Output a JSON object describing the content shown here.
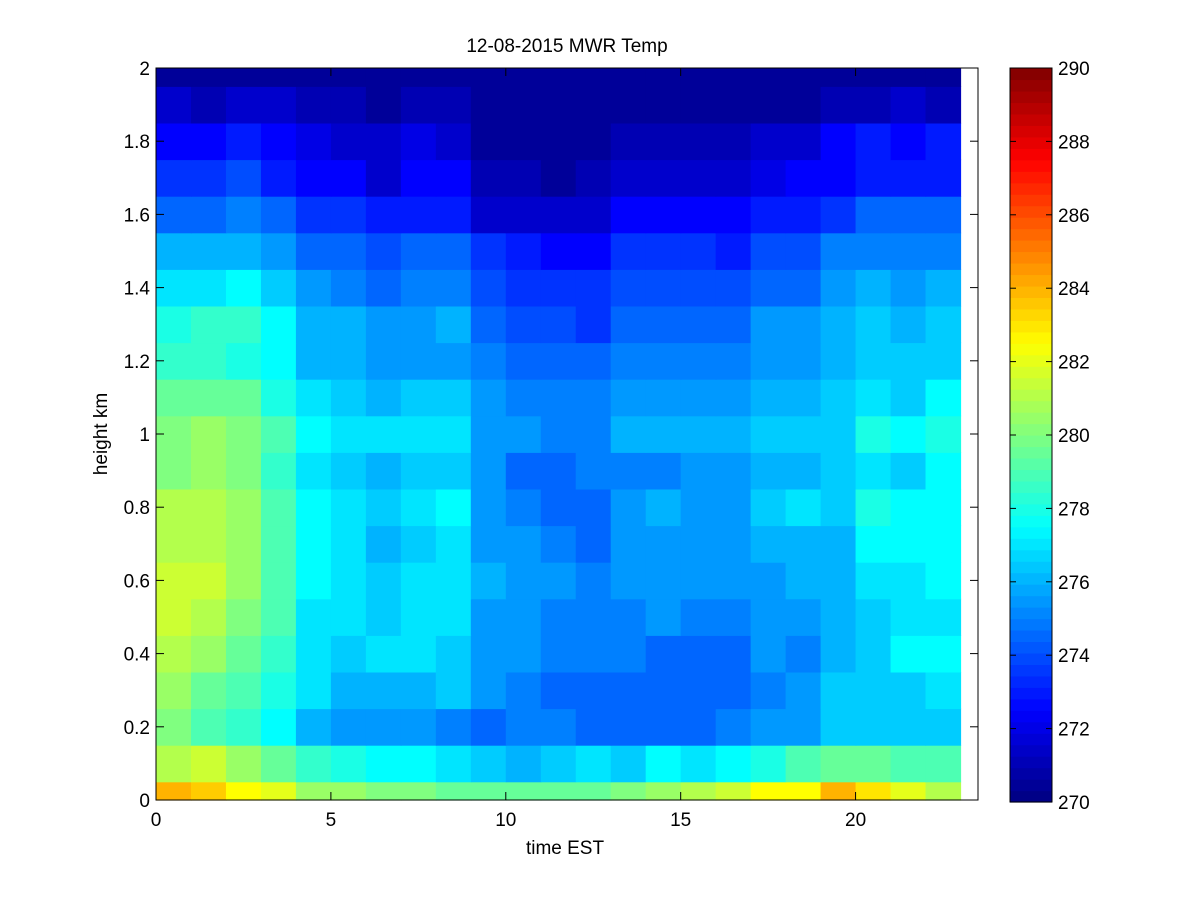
{
  "chart_data": {
    "type": "heatmap",
    "title": "12-08-2015 MWR Temp",
    "xlabel": "time EST",
    "ylabel": "height km",
    "xlim": [
      0,
      23.5
    ],
    "ylim": [
      0,
      2
    ],
    "x_ticks": [
      0,
      5,
      10,
      15,
      20
    ],
    "y_ticks": [
      0,
      0.2,
      0.4,
      0.6,
      0.8,
      1,
      1.2,
      1.4,
      1.6,
      1.8,
      2
    ],
    "y_tick_labels": [
      "0",
      "0.2",
      "0.4",
      "0.6",
      "0.8",
      "1",
      "1.2",
      "1.4",
      "1.6",
      "1.8",
      "2"
    ],
    "colormap": "jet",
    "colorbar": {
      "min": 270,
      "max": 290,
      "ticks": [
        270,
        272,
        274,
        276,
        278,
        280,
        282,
        284,
        286,
        288,
        290
      ]
    },
    "cell_width_hours": 1.0,
    "x_centers": [
      0.5,
      1.5,
      2.5,
      3.5,
      4.5,
      5.5,
      6.5,
      7.5,
      8.5,
      9.5,
      10.5,
      11.5,
      12.5,
      13.5,
      14.5,
      15.5,
      16.5,
      17.5,
      18.5,
      19.5,
      20.5,
      21.5,
      22.5
    ],
    "y_edges": [
      0,
      0.05,
      0.15,
      0.25,
      0.35,
      0.45,
      0.55,
      0.65,
      0.75,
      0.85,
      0.95,
      1.05,
      1.15,
      1.25,
      1.35,
      1.45,
      1.55,
      1.65,
      1.75,
      1.85,
      1.95,
      2.0
    ],
    "values": [
      [
        284.0,
        283.5,
        282.5,
        282.0,
        280.5,
        280.5,
        280.0,
        280.0,
        279.5,
        279.5,
        279.5,
        279.5,
        279.5,
        280.0,
        280.5,
        281.0,
        281.5,
        282.5,
        282.5,
        284.0,
        283.0,
        282.0,
        281.0
      ],
      [
        281.0,
        281.5,
        280.5,
        279.5,
        278.5,
        278.0,
        277.5,
        277.5,
        277.0,
        276.5,
        276.0,
        276.5,
        277.0,
        276.5,
        277.5,
        277.0,
        277.5,
        278.0,
        279.0,
        279.5,
        279.5,
        279.0,
        279.0
      ],
      [
        280.0,
        279.0,
        278.5,
        277.5,
        276.0,
        275.5,
        275.5,
        275.5,
        275.0,
        274.5,
        275.0,
        275.0,
        274.5,
        274.5,
        274.5,
        274.5,
        275.0,
        275.5,
        275.5,
        276.5,
        276.5,
        276.5,
        276.5
      ],
      [
        280.5,
        279.5,
        279.0,
        278.0,
        277.0,
        276.0,
        276.0,
        276.0,
        276.5,
        275.5,
        275.0,
        274.5,
        274.5,
        274.5,
        274.5,
        274.5,
        274.5,
        275.0,
        275.5,
        276.5,
        276.5,
        276.5,
        277.0
      ],
      [
        281.0,
        280.5,
        279.5,
        278.5,
        277.0,
        276.5,
        277.0,
        277.0,
        276.5,
        275.5,
        275.5,
        275.0,
        275.0,
        275.0,
        274.5,
        274.5,
        274.5,
        275.5,
        275.0,
        276.0,
        276.5,
        277.5,
        277.5
      ],
      [
        281.5,
        281.0,
        280.0,
        279.0,
        277.0,
        277.0,
        276.5,
        277.0,
        277.0,
        275.5,
        275.5,
        275.0,
        275.0,
        275.0,
        275.5,
        275.0,
        275.0,
        275.5,
        275.5,
        276.0,
        276.5,
        277.0,
        277.0
      ],
      [
        281.5,
        281.5,
        280.5,
        279.0,
        277.5,
        277.0,
        276.5,
        277.0,
        277.0,
        276.0,
        275.5,
        275.5,
        275.0,
        275.5,
        275.5,
        275.5,
        275.5,
        275.5,
        276.0,
        276.0,
        277.0,
        277.0,
        277.5
      ],
      [
        281.0,
        281.0,
        280.5,
        279.0,
        277.5,
        277.0,
        276.0,
        276.5,
        277.0,
        275.5,
        275.5,
        275.0,
        274.5,
        275.5,
        275.5,
        275.5,
        275.5,
        276.0,
        276.0,
        276.0,
        277.5,
        277.5,
        277.5
      ],
      [
        281.0,
        281.0,
        280.5,
        279.0,
        277.5,
        277.0,
        276.5,
        277.0,
        277.5,
        275.5,
        275.0,
        274.5,
        274.5,
        275.5,
        276.0,
        275.5,
        275.5,
        276.5,
        277.0,
        276.5,
        278.0,
        277.5,
        277.5
      ],
      [
        280.0,
        280.5,
        280.0,
        278.5,
        277.0,
        276.5,
        276.0,
        276.5,
        276.5,
        275.5,
        274.5,
        274.5,
        275.0,
        275.0,
        275.0,
        275.5,
        275.5,
        276.0,
        276.0,
        276.5,
        277.0,
        276.5,
        277.5
      ],
      [
        280.0,
        280.5,
        280.0,
        279.0,
        277.5,
        277.0,
        277.0,
        277.0,
        277.0,
        275.5,
        275.5,
        275.0,
        275.0,
        276.0,
        276.0,
        276.0,
        276.0,
        276.5,
        276.5,
        276.5,
        278.0,
        277.5,
        278.0
      ],
      [
        279.5,
        279.5,
        279.5,
        278.0,
        277.0,
        276.5,
        276.0,
        276.5,
        276.5,
        275.5,
        275.0,
        275.0,
        275.0,
        275.5,
        275.5,
        275.5,
        275.5,
        276.0,
        276.0,
        276.5,
        277.0,
        276.5,
        277.5
      ],
      [
        278.5,
        278.5,
        278.0,
        277.5,
        276.0,
        276.0,
        275.5,
        275.5,
        275.5,
        275.0,
        274.5,
        274.5,
        274.5,
        275.0,
        275.0,
        275.0,
        275.0,
        275.5,
        275.5,
        276.0,
        276.5,
        276.5,
        276.5
      ],
      [
        278.0,
        278.5,
        278.5,
        277.5,
        276.0,
        276.0,
        275.5,
        275.5,
        276.0,
        274.5,
        274.0,
        274.0,
        273.5,
        274.5,
        274.5,
        274.5,
        274.5,
        275.5,
        275.5,
        276.0,
        276.5,
        276.0,
        276.5
      ],
      [
        277.0,
        277.0,
        277.5,
        276.5,
        275.5,
        275.0,
        274.5,
        275.0,
        275.0,
        274.0,
        273.5,
        273.5,
        273.5,
        274.0,
        274.0,
        274.0,
        274.0,
        274.5,
        274.5,
        275.5,
        276.0,
        275.5,
        276.0
      ],
      [
        276.0,
        276.0,
        276.0,
        275.5,
        274.5,
        274.5,
        274.0,
        274.5,
        274.5,
        273.5,
        273.0,
        272.5,
        272.5,
        273.5,
        273.5,
        273.5,
        273.0,
        274.0,
        274.0,
        275.0,
        275.0,
        275.0,
        275.0
      ],
      [
        274.5,
        274.5,
        275.0,
        274.5,
        273.5,
        273.5,
        273.0,
        273.0,
        273.0,
        271.5,
        271.5,
        271.5,
        271.5,
        272.5,
        272.5,
        272.5,
        272.5,
        273.0,
        273.0,
        273.5,
        274.5,
        274.5,
        274.5
      ],
      [
        273.5,
        273.5,
        274.0,
        273.0,
        272.5,
        272.5,
        271.5,
        272.5,
        272.5,
        271.0,
        271.0,
        270.5,
        271.0,
        271.5,
        271.5,
        271.5,
        271.5,
        272.0,
        272.5,
        272.5,
        273.0,
        273.0,
        273.0
      ],
      [
        272.5,
        272.5,
        273.0,
        272.5,
        272.0,
        271.5,
        271.5,
        272.0,
        271.5,
        270.5,
        270.5,
        270.5,
        270.5,
        271.0,
        271.0,
        271.0,
        271.0,
        271.5,
        271.5,
        272.5,
        273.0,
        272.5,
        273.0
      ],
      [
        271.5,
        271.0,
        271.5,
        271.5,
        271.0,
        271.0,
        270.5,
        271.0,
        271.0,
        270.5,
        270.5,
        270.5,
        270.5,
        270.5,
        270.5,
        270.5,
        270.5,
        270.5,
        270.5,
        271.0,
        271.0,
        271.5,
        271.0
      ],
      [
        270.5,
        270.5,
        270.5,
        270.5,
        270.5,
        270.5,
        270.5,
        270.5,
        270.5,
        270.5,
        270.5,
        270.5,
        270.5,
        270.5,
        270.5,
        270.5,
        270.5,
        270.5,
        270.5,
        270.5,
        270.5,
        270.5,
        270.5
      ]
    ]
  }
}
